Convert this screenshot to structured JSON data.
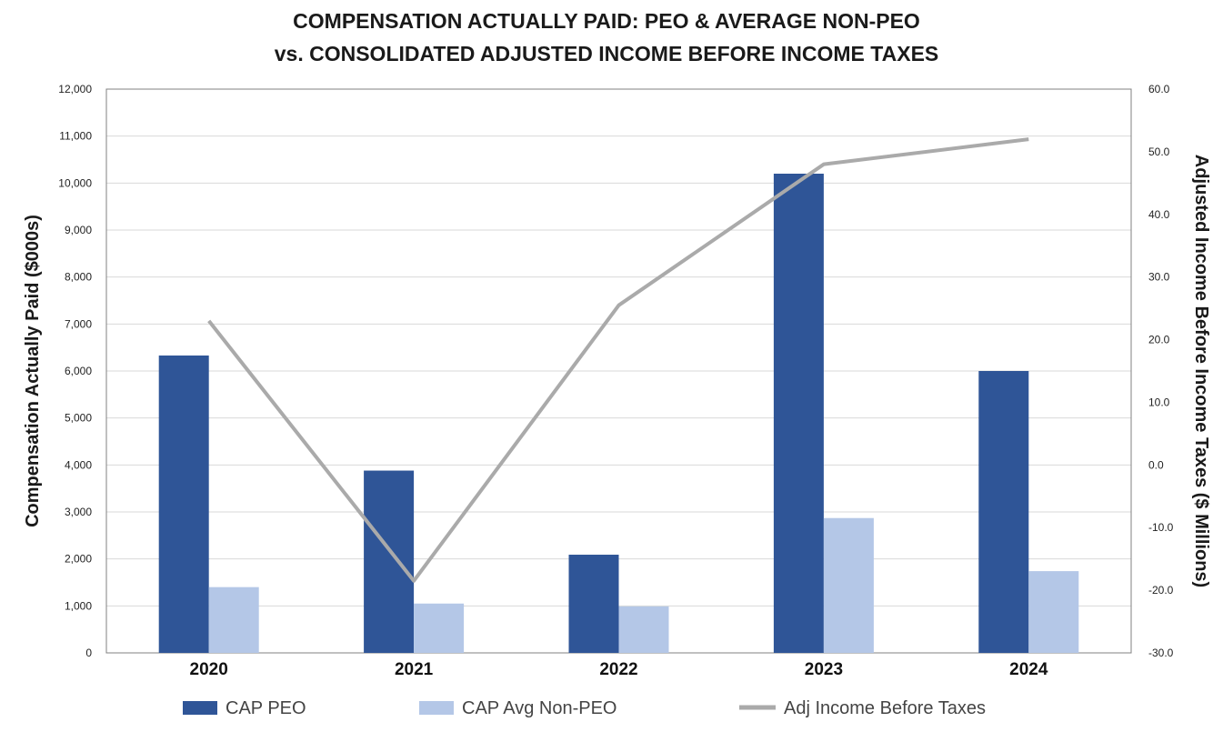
{
  "chart_data": {
    "type": "bar",
    "title_lines": [
      "COMPENSATION ACTUALLY PAID: PEO & AVERAGE NON-PEO",
      "vs. CONSOLIDATED ADJUSTED INCOME BEFORE INCOME TAXES"
    ],
    "categories": [
      "2020",
      "2021",
      "2022",
      "2023",
      "2024"
    ],
    "series": [
      {
        "name": "CAP PEO",
        "type": "bar",
        "axis": "left",
        "color": "#2f5597",
        "values": [
          6330,
          3880,
          2090,
          10200,
          6000
        ]
      },
      {
        "name": "CAP Avg Non-PEO",
        "type": "bar",
        "axis": "left",
        "color": "#b4c7e7",
        "values": [
          1400,
          1050,
          990,
          2870,
          1740
        ]
      },
      {
        "name": "Adj Income Before Taxes",
        "type": "line",
        "axis": "right",
        "color": "#aaaaaa",
        "values": [
          23.0,
          -18.5,
          25.5,
          48.0,
          52.0
        ]
      }
    ],
    "ylabel": "Compensation Actually Paid ($000s)",
    "ylabel_right": "Adjusted Income Before Income Taxes ($ Millions)",
    "ylim": [
      0,
      12000
    ],
    "ylim_right": [
      -30,
      60
    ],
    "yticks": [
      "0",
      "1,000",
      "2,000",
      "3,000",
      "4,000",
      "5,000",
      "6,000",
      "7,000",
      "8,000",
      "9,000",
      "10,000",
      "11,000",
      "12,000"
    ],
    "yticks_right": [
      "-30.0",
      "-20.0",
      "-10.0",
      "0.0",
      "10.0",
      "20.0",
      "30.0",
      "40.0",
      "50.0",
      "60.0"
    ],
    "grid": true,
    "legend_position": "bottom"
  }
}
